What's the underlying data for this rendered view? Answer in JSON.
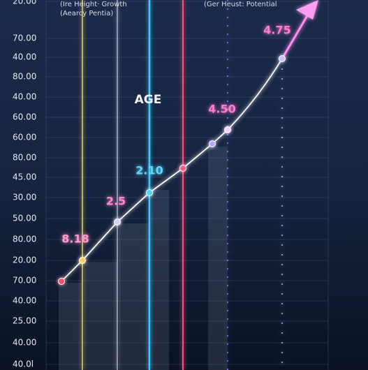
{
  "header": {
    "left_note_1": "(Ire Height· Growth",
    "left_note_2": "(Aearcy Pentia)",
    "right_note": "(Ger Heust: Potential",
    "axis_title": "AGE"
  },
  "y_labels": [
    "20.00",
    "70.00",
    "40.00",
    "80.00",
    "40.00",
    "60.00",
    "60.00",
    "80.00",
    "45.00",
    "30.00",
    "50.00",
    "80.00",
    "20.00",
    "70.00",
    "40.00",
    "25.00",
    "40.00",
    "40.0l"
  ],
  "point_labels": [
    "8.18",
    "2.5",
    "2.10",
    "4.50",
    "4.75"
  ]
}
